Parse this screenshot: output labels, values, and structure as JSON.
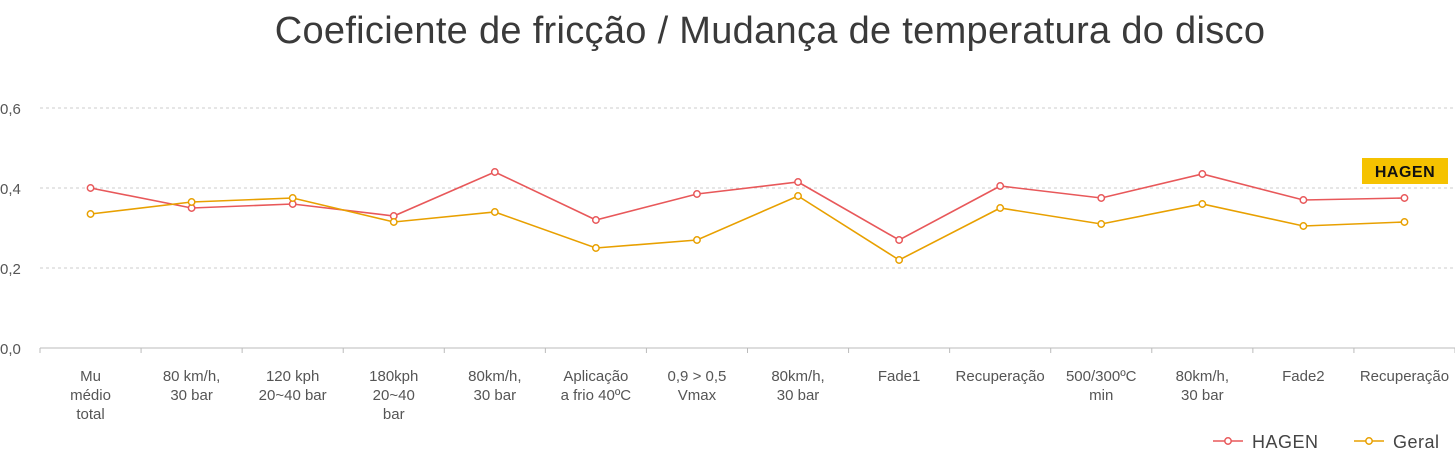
{
  "chart_data": {
    "type": "line",
    "title": "Coeficiente de fricção / Mudança de temperatura do disco",
    "xlabel": "",
    "ylabel": "",
    "ylim": [
      0,
      0.6
    ],
    "yticks": [
      "0,0",
      "0,2",
      "0,4",
      "0,6"
    ],
    "ytick_values": [
      0,
      0.2,
      0.4,
      0.6
    ],
    "grid": true,
    "legend_position": "bottom-right",
    "categories": [
      [
        "Mu",
        "médio",
        "total"
      ],
      [
        "80 km/h,",
        "30 bar"
      ],
      [
        "120 kph",
        "20~40 bar"
      ],
      [
        "180kph",
        "20~40",
        "bar"
      ],
      [
        "80km/h,",
        "30 bar"
      ],
      [
        "Aplicação",
        "a frio 40ºC"
      ],
      [
        "0,9 > 0,5",
        "Vmax"
      ],
      [
        "80km/h,",
        "30 bar"
      ],
      [
        "Fade1"
      ],
      [
        "Recuperação"
      ],
      [
        "500/300ºC",
        "min"
      ],
      [
        "80km/h,",
        "30 bar"
      ],
      [
        "Fade2"
      ],
      [
        "Recuperação"
      ]
    ],
    "series": [
      {
        "name": "HAGEN",
        "color": "#e8585a",
        "values": [
          0.4,
          0.35,
          0.36,
          0.33,
          0.44,
          0.32,
          0.385,
          0.415,
          0.27,
          0.405,
          0.375,
          0.435,
          0.37,
          0.375
        ]
      },
      {
        "name": "Geral",
        "color": "#e8a000",
        "values": [
          0.335,
          0.365,
          0.375,
          0.315,
          0.34,
          0.25,
          0.27,
          0.38,
          0.22,
          0.35,
          0.31,
          0.36,
          0.305,
          0.315
        ]
      }
    ],
    "annotation": {
      "text": "HAGEN",
      "background": "#f5c200"
    }
  }
}
